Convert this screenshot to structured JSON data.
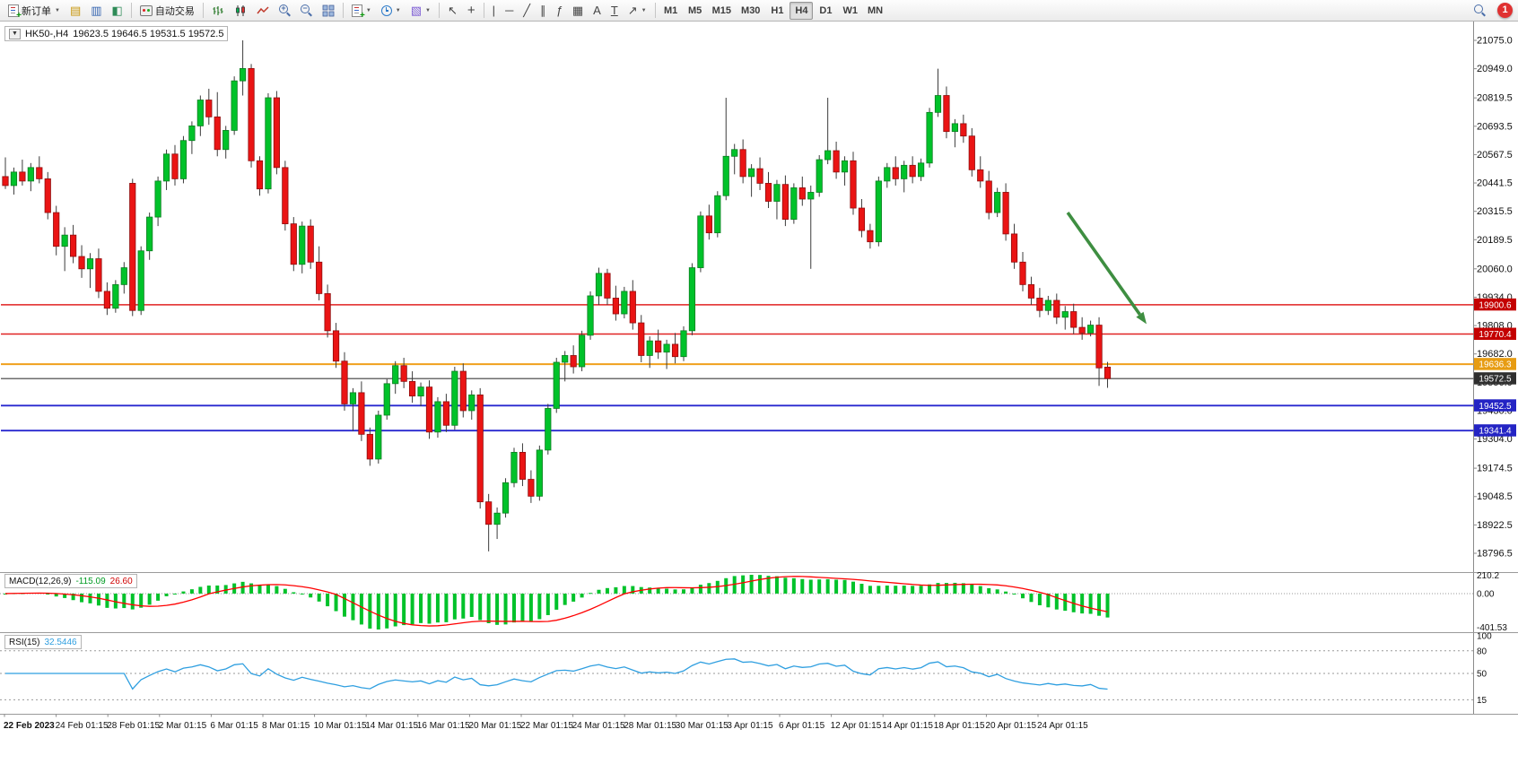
{
  "toolbar": {
    "new_order": "新订单",
    "auto_trading": "自动交易",
    "timeframes": [
      "M1",
      "M5",
      "M15",
      "M30",
      "H1",
      "H4",
      "D1",
      "W1",
      "MN"
    ],
    "active_timeframe": "H4",
    "notification_count": "1"
  },
  "icons": {
    "caret": "▼",
    "market_watch": "▤",
    "data_window": "▥",
    "navigator": "◧",
    "tile_windows": "⊞",
    "templates": "▧",
    "cursor": "↖",
    "crosshair": "+",
    "vertical_line": "|",
    "horizontal_line": "─",
    "trendline": "╱",
    "channel": "∥",
    "fibonacci": "ƒ",
    "grid": "▦",
    "text": "A",
    "text_label": "T",
    "arrows": "↗",
    "zoom_in": "+",
    "zoom_out": "−",
    "plus": "+"
  },
  "chart": {
    "title": "HK50-,H4",
    "ohlc": "19623.5 19646.5 19531.5 19572.5"
  },
  "price_axis": {
    "labels": [
      "21075.0",
      "20949.0",
      "20819.5",
      "20693.5",
      "20567.5",
      "20441.5",
      "20315.5",
      "20189.5",
      "20060.0",
      "19934.0",
      "19808.0",
      "19682.0",
      "19556.0",
      "19430.0",
      "19304.0",
      "19174.5",
      "19048.5",
      "18922.5",
      "18796.5"
    ]
  },
  "levels": [
    {
      "label": "19900.6",
      "price": 19900.6,
      "line_color": "#e02222",
      "badge_color": "#c40000",
      "width": 1.5
    },
    {
      "label": "19770.4",
      "price": 19770.4,
      "line_color": "#e02222",
      "badge_color": "#c40000",
      "width": 1.5
    },
    {
      "label": "19636.3",
      "price": 19636.3,
      "line_color": "#f0a11c",
      "badge_color": "#e79c12",
      "width": 2
    },
    {
      "label": "19572.5",
      "price": 19572.5,
      "line_color": "#3c3c3c",
      "badge_color": "#2f2f2f",
      "width": 1.2
    },
    {
      "label": "19452.5",
      "price": 19452.5,
      "line_color": "#2828cf",
      "badge_color": "#2424c4",
      "width": 1.8
    },
    {
      "label": "19341.4",
      "price": 19341.4,
      "line_color": "#2828cf",
      "badge_color": "#2424c4",
      "width": 1.8
    }
  ],
  "time_axis": {
    "labels": [
      "22 Feb 2023",
      "24 Feb 01:15",
      "28 Feb 01:15",
      "2 Mar 01:15",
      "6 Mar 01:15",
      "8 Mar 01:15",
      "10 Mar 01:15",
      "14 Mar 01:15",
      "16 Mar 01:15",
      "20 Mar 01:15",
      "22 Mar 01:15",
      "24 Mar 01:15",
      "28 Mar 01:15",
      "30 Mar 01:15",
      "3 Apr 01:15",
      "6 Apr 01:15",
      "12 Apr 01:15",
      "14 Apr 01:15",
      "18 Apr 01:15",
      "20 Apr 01:15",
      "24 Apr 01:15"
    ]
  },
  "macd": {
    "name": "MACD(12,26,9)",
    "value_main": "-115.09",
    "value_signal": "26.60",
    "axis_labels": [
      "210.2",
      "0.00",
      "-401.53"
    ],
    "max": 210.2,
    "min": -401.53
  },
  "rsi": {
    "name": "RSI(15)",
    "value": "32.5446",
    "axis_labels": [
      {
        "text": "100",
        "value": 100
      },
      {
        "text": "80",
        "value": 80
      },
      {
        "text": "50",
        "value": 50
      },
      {
        "text": "15",
        "value": 15
      }
    ],
    "level_lines": [
      80,
      50,
      15
    ]
  },
  "colors": {
    "candle_up": "#00c22a",
    "candle_up_border": "#0a7d20",
    "candle_down": "#ea1414",
    "candle_down_border": "#8f0d0d",
    "wick": "#3c3c3c",
    "macd_histogram": "#00c22a",
    "macd_signal": "#ff0000",
    "rsi_line": "#2f9fe0",
    "arrow": "#3e8e41",
    "axis_text": "#111111"
  },
  "chart_data": {
    "type": "candlestick",
    "symbol": "HK50-",
    "timeframe": "H4",
    "ohlc_display": {
      "open": 19623.5,
      "high": 19646.5,
      "low": 19531.5,
      "close": 19572.5
    },
    "y_axis_range": [
      18796.5,
      21075.0
    ],
    "horizontal_levels": [
      19900.6,
      19770.4,
      19636.3,
      19572.5,
      19452.5,
      19341.4
    ],
    "candles": [
      [
        20470,
        20555,
        20415,
        20430
      ],
      [
        20430,
        20510,
        20390,
        20490
      ],
      [
        20490,
        20545,
        20430,
        20450
      ],
      [
        20450,
        20530,
        20405,
        20510
      ],
      [
        20510,
        20560,
        20440,
        20460
      ],
      [
        20460,
        20490,
        20280,
        20310
      ],
      [
        20310,
        20340,
        20120,
        20160
      ],
      [
        20160,
        20245,
        20050,
        20210
      ],
      [
        20210,
        20255,
        20085,
        20115
      ],
      [
        20115,
        20165,
        20020,
        20060
      ],
      [
        20060,
        20130,
        19975,
        20105
      ],
      [
        20105,
        20150,
        19930,
        19960
      ],
      [
        19960,
        20000,
        19855,
        19885
      ],
      [
        19885,
        20010,
        19865,
        19990
      ],
      [
        19990,
        20090,
        19950,
        20065
      ],
      [
        20440,
        20460,
        19850,
        19875
      ],
      [
        19875,
        20160,
        19855,
        20140
      ],
      [
        20140,
        20310,
        20100,
        20290
      ],
      [
        20290,
        20470,
        20250,
        20450
      ],
      [
        20450,
        20590,
        20410,
        20570
      ],
      [
        20570,
        20610,
        20430,
        20460
      ],
      [
        20460,
        20650,
        20440,
        20630
      ],
      [
        20630,
        20715,
        20570,
        20695
      ],
      [
        20695,
        20830,
        20650,
        20810
      ],
      [
        20810,
        20860,
        20700,
        20735
      ],
      [
        20735,
        20845,
        20560,
        20590
      ],
      [
        20590,
        20695,
        20550,
        20675
      ],
      [
        20675,
        20915,
        20655,
        20895
      ],
      [
        20895,
        21075,
        20830,
        20950
      ],
      [
        20950,
        20970,
        20510,
        20540
      ],
      [
        20540,
        20560,
        20385,
        20415
      ],
      [
        20415,
        20840,
        20395,
        20820
      ],
      [
        20820,
        20850,
        20480,
        20510
      ],
      [
        20510,
        20540,
        20230,
        20260
      ],
      [
        20260,
        20290,
        20050,
        20080
      ],
      [
        20080,
        20270,
        20040,
        20250
      ],
      [
        20250,
        20280,
        20060,
        20090
      ],
      [
        20090,
        20160,
        19920,
        19950
      ],
      [
        19950,
        19990,
        19755,
        19785
      ],
      [
        19785,
        19820,
        19620,
        19650
      ],
      [
        19650,
        19690,
        19430,
        19460
      ],
      [
        19460,
        19530,
        19340,
        19510
      ],
      [
        19510,
        19560,
        19295,
        19325
      ],
      [
        19325,
        19355,
        19185,
        19215
      ],
      [
        19215,
        19430,
        19195,
        19410
      ],
      [
        19410,
        19570,
        19390,
        19550
      ],
      [
        19550,
        19650,
        19505,
        19630
      ],
      [
        19630,
        19665,
        19530,
        19560
      ],
      [
        19560,
        19605,
        19465,
        19495
      ],
      [
        19495,
        19555,
        19450,
        19535
      ],
      [
        19535,
        19565,
        19305,
        19335
      ],
      [
        19335,
        19490,
        19310,
        19470
      ],
      [
        19470,
        19505,
        19335,
        19365
      ],
      [
        19365,
        19625,
        19345,
        19605
      ],
      [
        19605,
        19640,
        19400,
        19430
      ],
      [
        19430,
        19520,
        19390,
        19500
      ],
      [
        19500,
        19530,
        18995,
        19025
      ],
      [
        19025,
        19060,
        18805,
        18925
      ],
      [
        18925,
        19000,
        18860,
        18975
      ],
      [
        18975,
        19130,
        18955,
        19110
      ],
      [
        19110,
        19265,
        19090,
        19245
      ],
      [
        19245,
        19285,
        19095,
        19125
      ],
      [
        19125,
        19165,
        19020,
        19050
      ],
      [
        19050,
        19275,
        19030,
        19255
      ],
      [
        19255,
        19460,
        19235,
        19440
      ],
      [
        19440,
        19665,
        19420,
        19645
      ],
      [
        19645,
        19695,
        19560,
        19675
      ],
      [
        19675,
        19720,
        19595,
        19625
      ],
      [
        19625,
        19785,
        19605,
        19765
      ],
      [
        19765,
        19960,
        19745,
        19940
      ],
      [
        19940,
        20065,
        19900,
        20040
      ],
      [
        20040,
        20060,
        19900,
        19930
      ],
      [
        19930,
        19985,
        19830,
        19860
      ],
      [
        19860,
        19980,
        19840,
        19960
      ],
      [
        19960,
        20010,
        19790,
        19820
      ],
      [
        19820,
        19855,
        19645,
        19675
      ],
      [
        19675,
        19760,
        19620,
        19740
      ],
      [
        19740,
        19790,
        19660,
        19690
      ],
      [
        19690,
        19745,
        19615,
        19725
      ],
      [
        19725,
        19775,
        19640,
        19670
      ],
      [
        19670,
        19805,
        19650,
        19785
      ],
      [
        19785,
        20085,
        19765,
        20065
      ],
      [
        20065,
        20315,
        20045,
        20295
      ],
      [
        20295,
        20345,
        20190,
        20220
      ],
      [
        20220,
        20405,
        20200,
        20385
      ],
      [
        20385,
        20820,
        20365,
        20560
      ],
      [
        20560,
        20615,
        20480,
        20590
      ],
      [
        20590,
        20635,
        20440,
        20470
      ],
      [
        20470,
        20525,
        20380,
        20505
      ],
      [
        20505,
        20555,
        20410,
        20440
      ],
      [
        20440,
        20490,
        20330,
        20360
      ],
      [
        20360,
        20455,
        20280,
        20435
      ],
      [
        20435,
        20475,
        20250,
        20280
      ],
      [
        20280,
        20440,
        20260,
        20420
      ],
      [
        20420,
        20470,
        20340,
        20370
      ],
      [
        20370,
        20430,
        20060,
        20400
      ],
      [
        20400,
        20565,
        20380,
        20545
      ],
      [
        20545,
        20820,
        20525,
        20585
      ],
      [
        20585,
        20625,
        20460,
        20490
      ],
      [
        20490,
        20560,
        20430,
        20540
      ],
      [
        20540,
        20580,
        20300,
        20330
      ],
      [
        20330,
        20370,
        20200,
        20230
      ],
      [
        20230,
        20260,
        20150,
        20180
      ],
      [
        20180,
        20470,
        20160,
        20450
      ],
      [
        20450,
        20530,
        20420,
        20510
      ],
      [
        20510,
        20560,
        20430,
        20460
      ],
      [
        20460,
        20540,
        20400,
        20520
      ],
      [
        20520,
        20560,
        20440,
        20470
      ],
      [
        20470,
        20550,
        20450,
        20530
      ],
      [
        20530,
        20775,
        20510,
        20755
      ],
      [
        20755,
        20949,
        20735,
        20830
      ],
      [
        20830,
        20870,
        20640,
        20670
      ],
      [
        20670,
        20725,
        20600,
        20705
      ],
      [
        20705,
        20745,
        20620,
        20650
      ],
      [
        20650,
        20685,
        20470,
        20500
      ],
      [
        20500,
        20560,
        20420,
        20450
      ],
      [
        20450,
        20495,
        20280,
        20310
      ],
      [
        20310,
        20420,
        20290,
        20400
      ],
      [
        20400,
        20440,
        20185,
        20215
      ],
      [
        20215,
        20260,
        20060,
        20090
      ],
      [
        20090,
        20135,
        19960,
        19990
      ],
      [
        19990,
        20025,
        19900,
        19930
      ],
      [
        19930,
        19975,
        19845,
        19875
      ],
      [
        19875,
        19940,
        19855,
        19920
      ],
      [
        19920,
        19950,
        19815,
        19845
      ],
      [
        19845,
        19895,
        19790,
        19870
      ],
      [
        19870,
        19905,
        19770,
        19800
      ],
      [
        19800,
        19845,
        19745,
        19775
      ],
      [
        19775,
        19830,
        19760,
        19810
      ],
      [
        19810,
        19845,
        19540,
        19620
      ],
      [
        19623.5,
        19646.5,
        19531.5,
        19572.5
      ]
    ],
    "annotations": [
      {
        "type": "arrow",
        "color": "#3e8e41",
        "from": {
          "index": 125.3,
          "price": 20310
        },
        "to": {
          "index": 134.6,
          "price": 19815
        }
      }
    ],
    "indicators": [
      {
        "type": "MACD",
        "params": [
          12,
          26,
          9
        ],
        "display_values": [
          -115.09,
          26.6
        ],
        "axis_range": [
          -401.53,
          210.2
        ]
      },
      {
        "type": "RSI",
        "params": [
          15
        ],
        "display_value": 32.5446,
        "levels": [
          80,
          50,
          15
        ]
      }
    ]
  }
}
